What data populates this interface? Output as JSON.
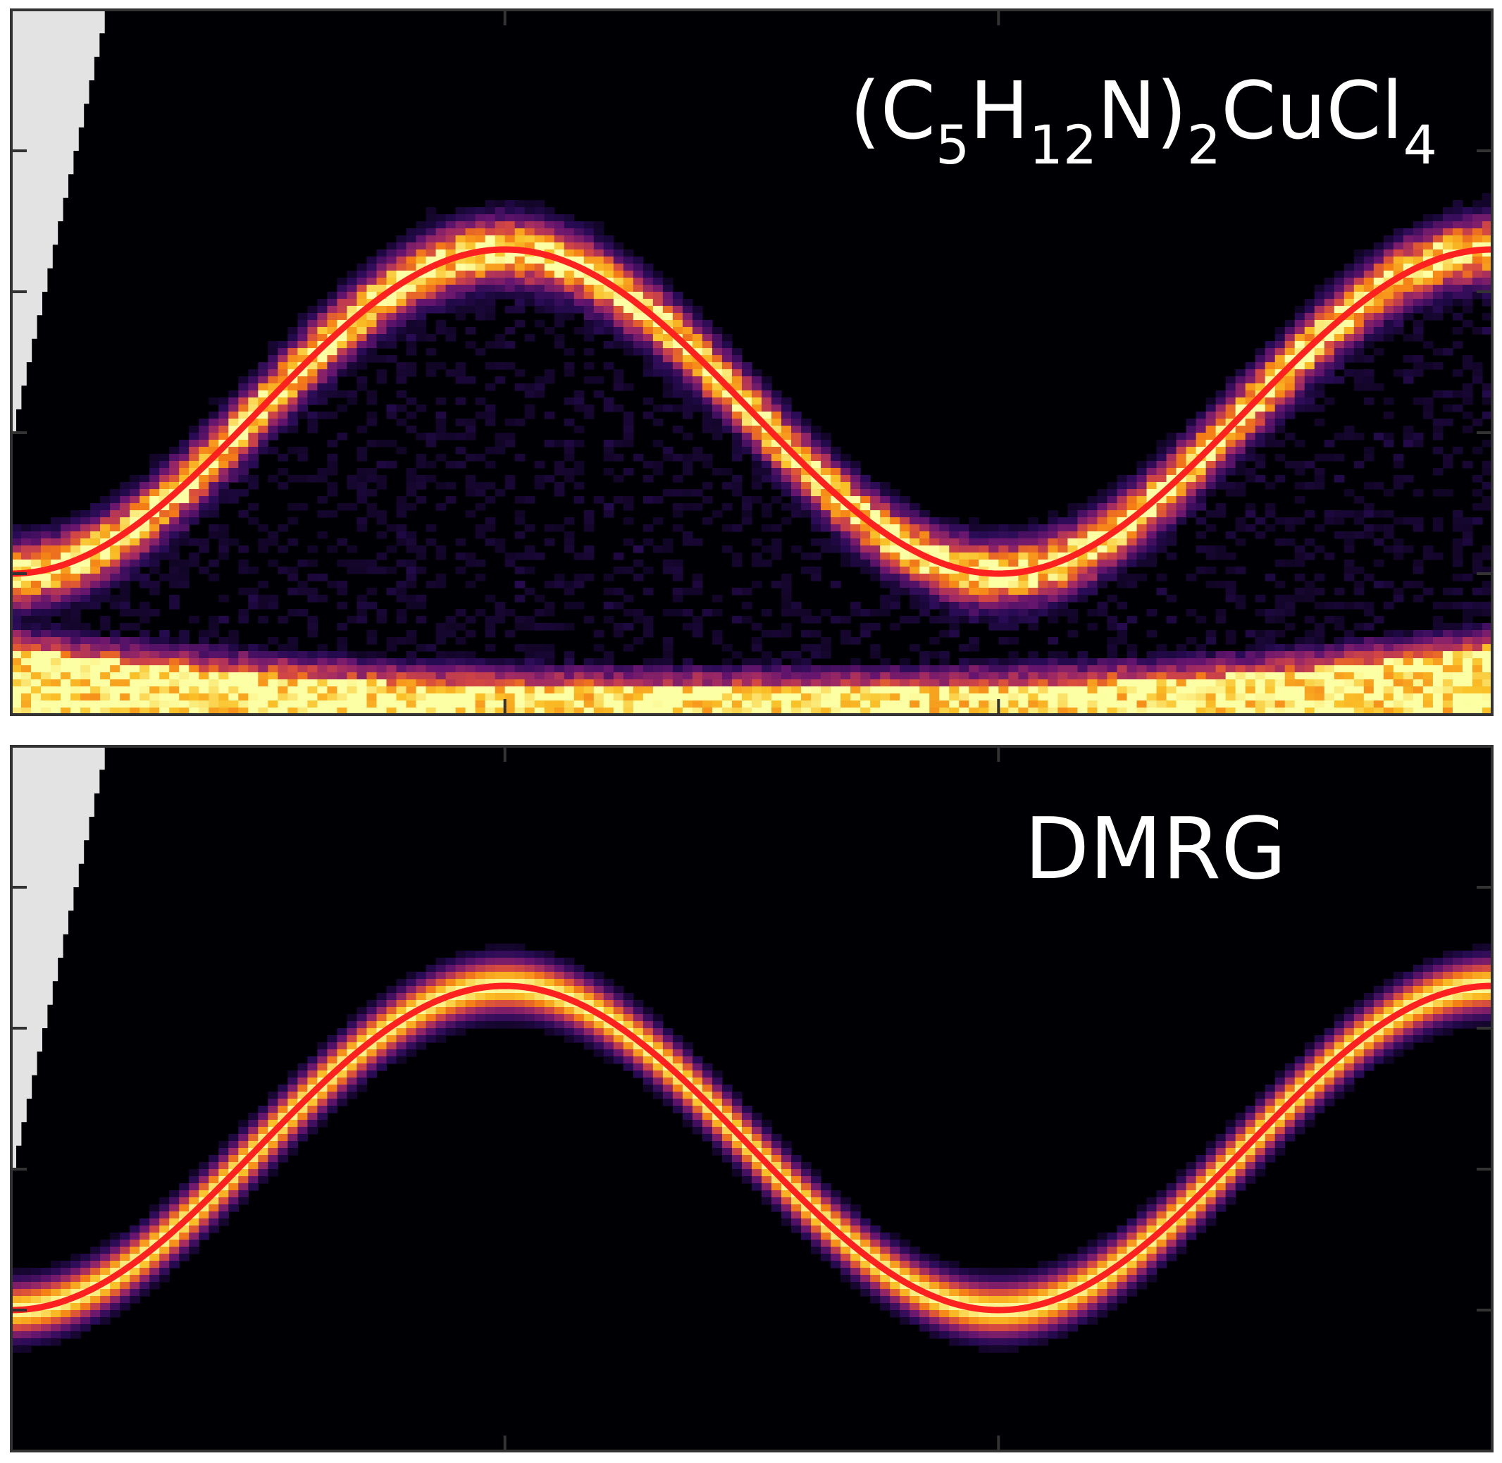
{
  "chart_data": [
    {
      "type": "heatmap",
      "title": "(C5H12N)2CuCl4",
      "label_parts": {
        "a": "(C",
        "s1": "5",
        "b": "H",
        "s2": "12",
        "c": "N)",
        "s3": "2",
        "d": "CuCl",
        "s4": "4"
      },
      "xlabel": "",
      "ylabel": "",
      "xlim": [
        0,
        3
      ],
      "ylim": [
        0,
        1
      ],
      "x_ticks": [
        1,
        2
      ],
      "y_ticks": [
        0.2,
        0.4,
        0.6,
        0.8
      ],
      "dispersion_curve": {
        "color": "#ff2020",
        "x": [
          0,
          1,
          2,
          3
        ],
        "y": [
          0.2,
          0.66,
          0.2,
          0.66
        ]
      },
      "colormap": "inferno",
      "noise": true,
      "elastic_line_at_bottom": true,
      "excluded_region": "top-left"
    },
    {
      "type": "heatmap",
      "title": "DMRG",
      "xlabel": "",
      "ylabel": "",
      "xlim": [
        0,
        3
      ],
      "ylim": [
        0,
        1
      ],
      "x_ticks": [
        1,
        2
      ],
      "y_ticks": [
        0.2,
        0.4,
        0.6,
        0.8
      ],
      "dispersion_curve": {
        "color": "#ff2020",
        "x": [
          0,
          1,
          2,
          3
        ],
        "y": [
          0.2,
          0.66,
          0.2,
          0.66
        ]
      },
      "colormap": "inferno",
      "noise": false,
      "elastic_line_at_bottom": false,
      "excluded_region": "top-left"
    }
  ]
}
